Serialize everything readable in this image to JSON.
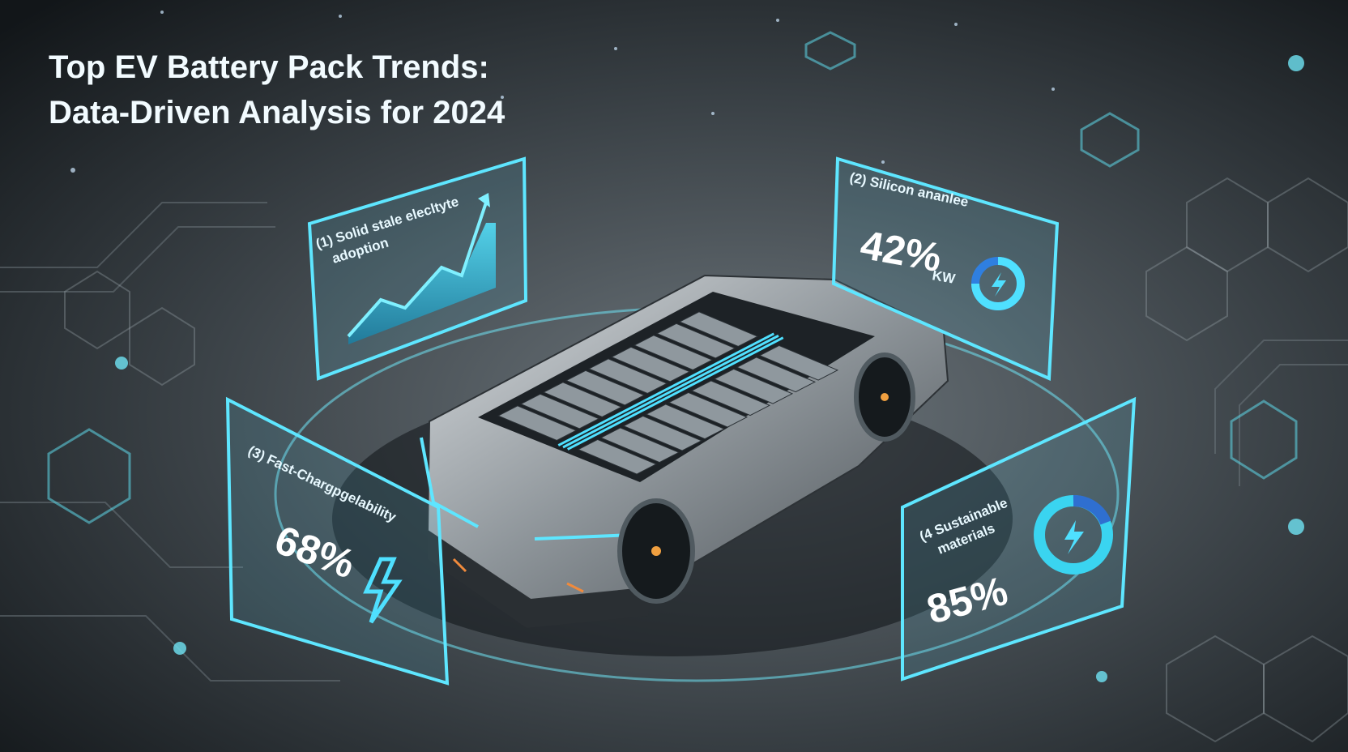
{
  "header": {
    "title_lines": [
      "Top EV Battery Pack Trends:",
      "Data-Driven Analysis for 2024"
    ]
  },
  "panels": [
    {
      "label": "(1) Solid stale elecltyte",
      "sublabel": "adoption"
    },
    {
      "label": "(2) Silicon ananlee",
      "value": "42%",
      "unit": "KW"
    },
    {
      "label": "(3) Fast-Chargpgelability",
      "value": "68%"
    },
    {
      "label": "(4 Sustainable",
      "sublabel": "materials",
      "value": "85%"
    }
  ]
}
